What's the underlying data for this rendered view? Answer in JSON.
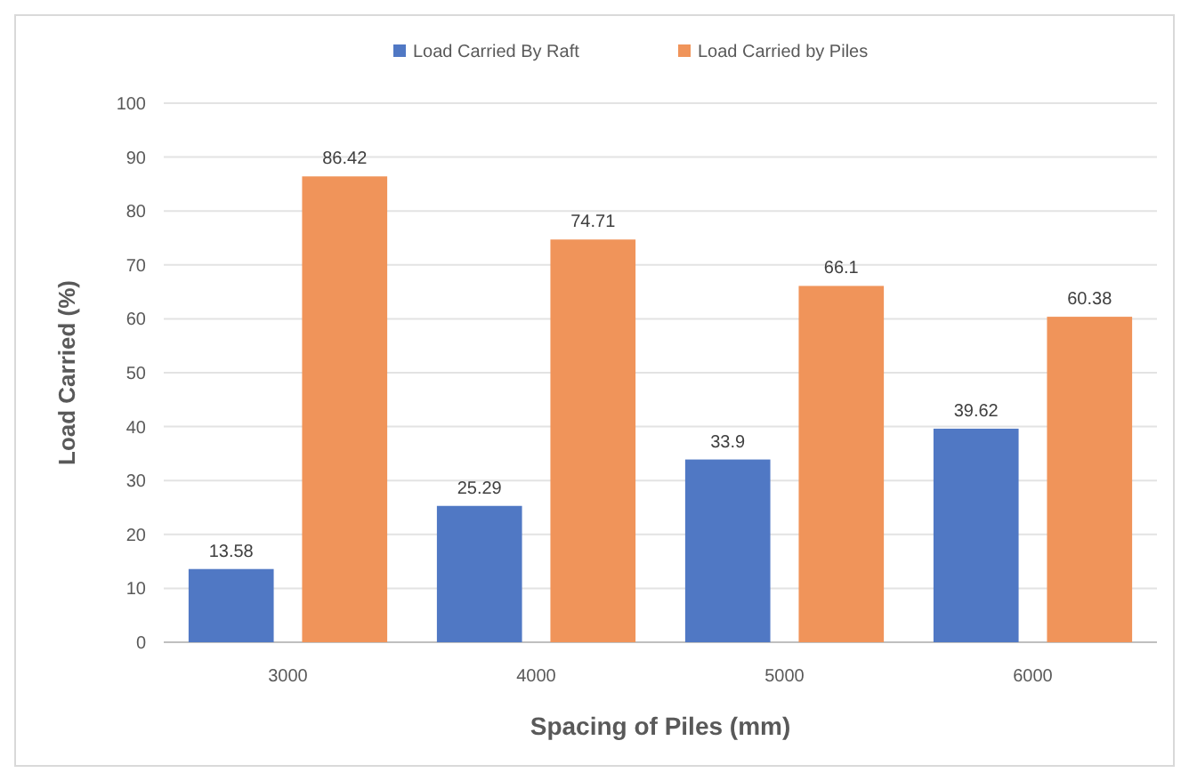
{
  "chart_data": {
    "type": "bar",
    "xlabel": "Spacing of Piles (mm)",
    "ylabel": "Load Carried (%)",
    "categories": [
      "3000",
      "4000",
      "5000",
      "6000"
    ],
    "series": [
      {
        "name": "Load Carried By Raft",
        "color": "#5078c4",
        "values": [
          13.58,
          25.29,
          33.9,
          39.62
        ]
      },
      {
        "name": "Load Carried by Piles",
        "color": "#f0945a",
        "values": [
          86.42,
          74.71,
          66.1,
          60.38
        ]
      }
    ],
    "ylim": [
      0,
      100
    ],
    "yticks": [
      0,
      10,
      20,
      30,
      40,
      50,
      60,
      70,
      80,
      90,
      100
    ],
    "grid": "y",
    "legend": "top",
    "data_labels": true
  }
}
